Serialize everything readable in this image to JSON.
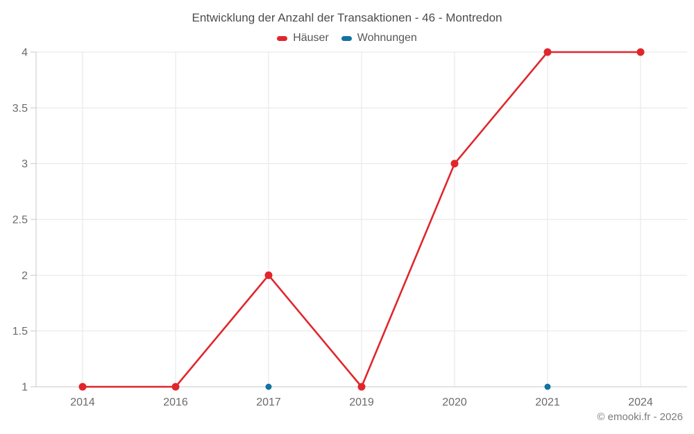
{
  "chart_data": {
    "type": "line",
    "title": "Entwicklung der Anzahl der Transaktionen - 46 - Montredon",
    "categories": [
      "2014",
      "2016",
      "2017",
      "2019",
      "2020",
      "2021",
      "2024"
    ],
    "series": [
      {
        "name": "Häuser",
        "color": "#e0262c",
        "marker_radius": 5.5,
        "line_width": 2.6,
        "values": [
          1,
          1,
          2,
          1,
          3,
          4,
          4
        ]
      },
      {
        "name": "Wohnungen",
        "color": "#1272a3",
        "marker_radius": 4.5,
        "line_width": 2.6,
        "values": [
          null,
          null,
          1,
          null,
          null,
          1,
          null
        ]
      }
    ],
    "ylim": [
      1,
      4
    ],
    "yticks": [
      1,
      1.5,
      2,
      2.5,
      3,
      3.5,
      4
    ],
    "xlabel": "",
    "ylabel": "",
    "grid": true,
    "legend_position": "top",
    "footer": "© emooki.fr - 2026",
    "colors": {
      "background": "#ffffff",
      "grid": "#e6e6e6",
      "axis": "#c9c9c9",
      "tick_label": "#6b6b6b",
      "title_text": "#4c4c4c",
      "legend_text": "#565656",
      "footer_text": "#7b7b7b"
    }
  }
}
